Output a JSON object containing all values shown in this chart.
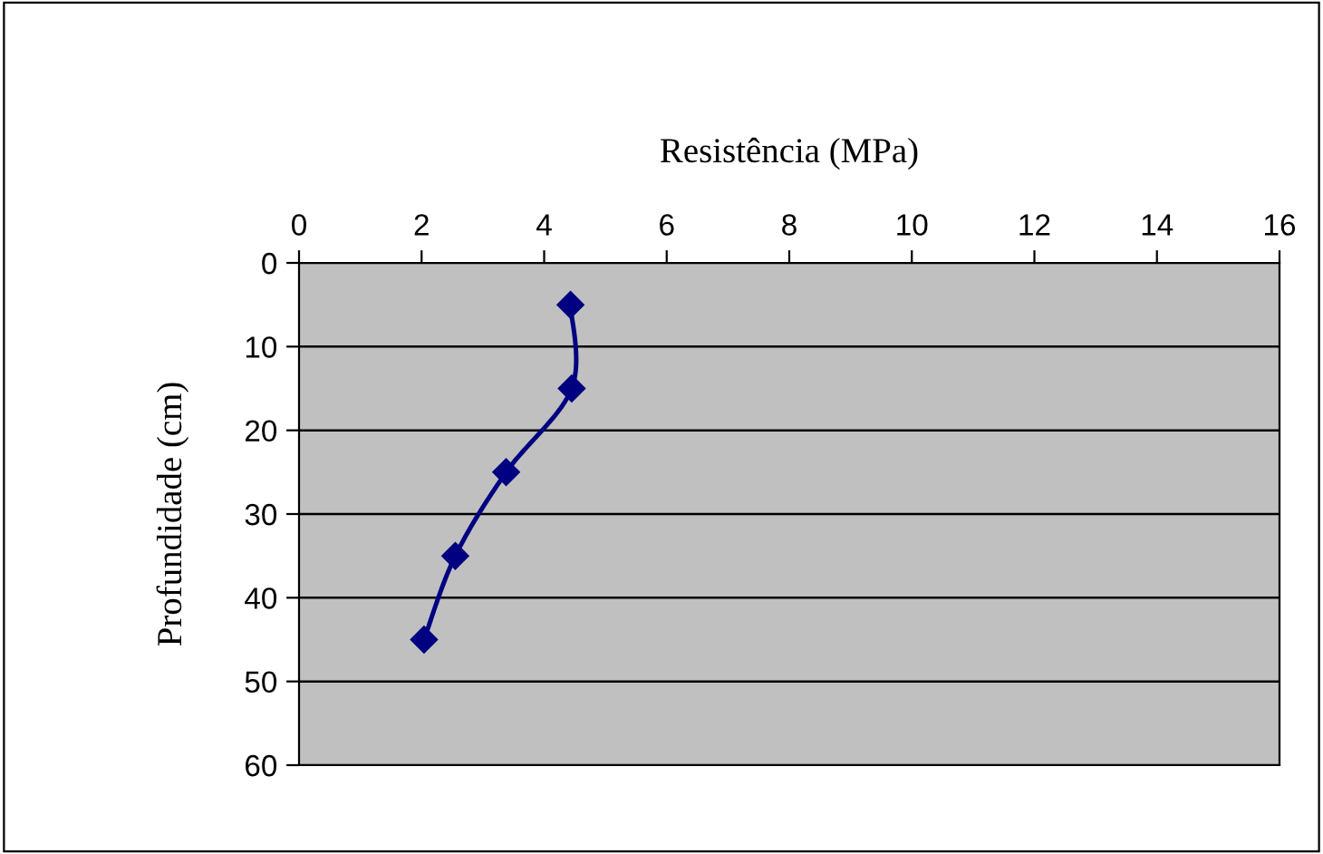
{
  "chart_data": {
    "type": "line",
    "title": "Resistência (MPa)",
    "ylabel": "Profundidade (cm)",
    "x": [
      4.43,
      4.45,
      3.38,
      2.55,
      2.04
    ],
    "series": [
      {
        "color": "#000080",
        "values": [
          5,
          15,
          25,
          35,
          45
        ]
      }
    ],
    "xlim": [
      0,
      16
    ],
    "xticks": [
      0,
      2,
      4,
      6,
      8,
      10,
      12,
      14,
      16
    ],
    "ylim": [
      60,
      0
    ],
    "yticks": [
      0,
      10,
      20,
      30,
      40,
      50,
      60
    ],
    "grid": "y",
    "marker": "diamond",
    "line_style": "solid"
  }
}
